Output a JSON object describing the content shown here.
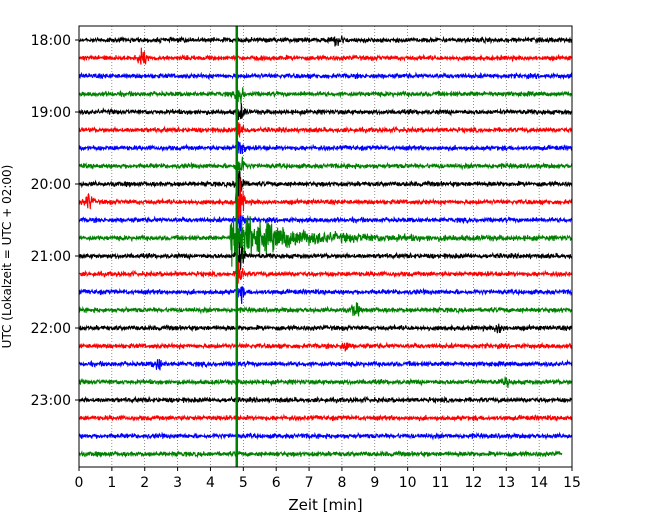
{
  "chart_data": {
    "type": "line",
    "xlabel": "Zeit  [min]",
    "ylabel": "UTC (Lokalzeit = UTC + 02:00)",
    "xlim": [
      0,
      15
    ],
    "x_ticks": [
      0,
      1,
      2,
      3,
      4,
      5,
      6,
      7,
      8,
      9,
      10,
      11,
      12,
      13,
      14,
      15
    ],
    "x_tick_labels": [
      "0",
      "1",
      "2",
      "3",
      "4",
      "5",
      "6",
      "7",
      "8",
      "9",
      "10",
      "11",
      "12",
      "13",
      "14",
      "15"
    ],
    "y_tick_labels": [
      {
        "label": "18:00",
        "trace_index": 0
      },
      {
        "label": "19:00",
        "trace_index": 4
      },
      {
        "label": "20:00",
        "trace_index": 8
      },
      {
        "label": "21:00",
        "trace_index": 12
      },
      {
        "label": "22:00",
        "trace_index": 16
      },
      {
        "label": "23:00",
        "trace_index": 20
      }
    ],
    "trace_interval_minutes": 15,
    "trace_colors": [
      "#000000",
      "#ff0000",
      "#0000ff",
      "#008000"
    ],
    "grid": {
      "x": true,
      "y": false
    },
    "traces": [
      {
        "start": "18:00",
        "color": "#000000",
        "events": [
          {
            "t": 7.9,
            "amp": 1.0
          }
        ]
      },
      {
        "start": "18:15",
        "color": "#ff0000",
        "events": [
          {
            "t": 1.9,
            "amp": 1.3
          }
        ]
      },
      {
        "start": "18:30",
        "color": "#0000ff",
        "events": []
      },
      {
        "start": "18:45",
        "color": "#008000",
        "events": [
          {
            "t": 4.9,
            "amp": 1.2
          }
        ]
      },
      {
        "start": "19:00",
        "color": "#000000",
        "events": [
          {
            "t": 4.9,
            "amp": 1.2
          }
        ]
      },
      {
        "start": "19:15",
        "color": "#ff0000",
        "events": [
          {
            "t": 4.9,
            "amp": 1.2
          }
        ]
      },
      {
        "start": "19:30",
        "color": "#0000ff",
        "events": [
          {
            "t": 4.9,
            "amp": 1.5
          }
        ]
      },
      {
        "start": "19:45",
        "color": "#008000",
        "events": [
          {
            "t": 4.9,
            "amp": 2.0
          }
        ]
      },
      {
        "start": "20:00",
        "color": "#000000",
        "events": [
          {
            "t": 4.9,
            "amp": 2.5
          }
        ]
      },
      {
        "start": "20:15",
        "color": "#ff0000",
        "events": [
          {
            "t": 0.3,
            "amp": 1.1
          },
          {
            "t": 4.9,
            "amp": 3.0
          }
        ]
      },
      {
        "start": "20:30",
        "color": "#0000ff",
        "events": [
          {
            "t": 4.9,
            "amp": 2.5
          }
        ]
      },
      {
        "start": "20:45",
        "color": "#008000",
        "events": [
          {
            "t": 4.6,
            "amp": 18.0
          }
        ]
      },
      {
        "start": "21:00",
        "color": "#000000",
        "events": [
          {
            "t": 4.9,
            "amp": 2.0
          }
        ]
      },
      {
        "start": "21:15",
        "color": "#ff0000",
        "events": [
          {
            "t": 4.9,
            "amp": 1.5
          }
        ]
      },
      {
        "start": "21:30",
        "color": "#0000ff",
        "events": [
          {
            "t": 4.9,
            "amp": 1.2
          }
        ]
      },
      {
        "start": "21:45",
        "color": "#008000",
        "events": [
          {
            "t": 8.4,
            "amp": 0.9
          }
        ]
      },
      {
        "start": "22:00",
        "color": "#000000",
        "events": [
          {
            "t": 12.8,
            "amp": 0.8
          }
        ]
      },
      {
        "start": "22:15",
        "color": "#ff0000",
        "events": [
          {
            "t": 8.1,
            "amp": 0.8
          }
        ]
      },
      {
        "start": "22:30",
        "color": "#0000ff",
        "events": [
          {
            "t": 2.4,
            "amp": 0.8
          }
        ]
      },
      {
        "start": "22:45",
        "color": "#008000",
        "events": [
          {
            "t": 13.0,
            "amp": 0.5
          }
        ]
      },
      {
        "start": "23:00",
        "color": "#000000",
        "events": []
      },
      {
        "start": "23:15",
        "color": "#ff0000",
        "events": []
      },
      {
        "start": "23:30",
        "color": "#0000ff",
        "events": []
      },
      {
        "start": "23:45",
        "color": "#008000",
        "events": [],
        "end_t": 14.7
      }
    ],
    "marker": {
      "t": 4.8,
      "color": "#008000"
    }
  }
}
